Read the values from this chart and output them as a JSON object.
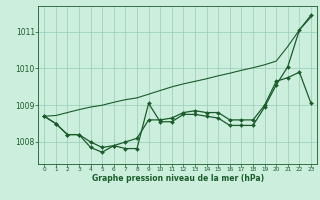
{
  "background_color": "#cceedd",
  "grid_color": "#99ccbb",
  "line_color_main": "#1a5c2a",
  "xlabel": "Graphe pression niveau de la mer (hPa)",
  "xlim": [
    -0.5,
    23.5
  ],
  "ylim": [
    1007.4,
    1011.7
  ],
  "yticks": [
    1008,
    1009,
    1010,
    1011
  ],
  "xticks": [
    0,
    1,
    2,
    3,
    4,
    5,
    6,
    7,
    8,
    9,
    10,
    11,
    12,
    13,
    14,
    15,
    16,
    17,
    18,
    19,
    20,
    21,
    22,
    23
  ],
  "series": [
    {
      "x": [
        0,
        1,
        2,
        3,
        4,
        5,
        6,
        7,
        8,
        9,
        10,
        11,
        12,
        13,
        14,
        15,
        16,
        17,
        18,
        19,
        20,
        21,
        22,
        23
      ],
      "y": [
        1008.7,
        1008.72,
        1008.8,
        1008.88,
        1008.95,
        1009.0,
        1009.08,
        1009.15,
        1009.2,
        1009.3,
        1009.4,
        1009.5,
        1009.58,
        1009.65,
        1009.72,
        1009.8,
        1009.87,
        1009.95,
        1010.02,
        1010.1,
        1010.2,
        1010.6,
        1011.05,
        1011.4
      ],
      "color": "#1a5c2a",
      "linewidth": 0.8,
      "marker": null,
      "markersize": 0
    },
    {
      "x": [
        0,
        1,
        2,
        3,
        4,
        5,
        6,
        7,
        8,
        9,
        10,
        11,
        12,
        13,
        14,
        15,
        16,
        17,
        18,
        19,
        20,
        21,
        22,
        23
      ],
      "y": [
        1008.7,
        1008.5,
        1008.2,
        1008.2,
        1008.0,
        1007.85,
        1007.9,
        1008.0,
        1008.1,
        1008.6,
        1008.6,
        1008.65,
        1008.8,
        1008.85,
        1008.8,
        1008.8,
        1008.6,
        1008.6,
        1008.6,
        1009.0,
        1009.65,
        1009.75,
        1009.9,
        1009.05
      ],
      "color": "#1a5c2a",
      "linewidth": 0.9,
      "marker": "D",
      "markersize": 2.0
    },
    {
      "x": [
        0,
        1,
        2,
        3,
        4,
        5,
        6,
        7,
        8,
        9,
        10,
        11,
        12,
        13,
        14,
        15,
        16,
        17,
        18,
        19,
        20,
        21,
        22,
        23
      ],
      "y": [
        1008.7,
        1008.5,
        1008.2,
        1008.2,
        1007.85,
        1007.72,
        1007.9,
        1007.82,
        1007.82,
        1009.05,
        1008.55,
        1008.55,
        1008.75,
        1008.75,
        1008.7,
        1008.65,
        1008.45,
        1008.45,
        1008.45,
        1008.95,
        1009.55,
        1010.05,
        1011.05,
        1011.45
      ],
      "color": "#1a5c2a",
      "linewidth": 0.9,
      "marker": "D",
      "markersize": 2.0
    }
  ]
}
